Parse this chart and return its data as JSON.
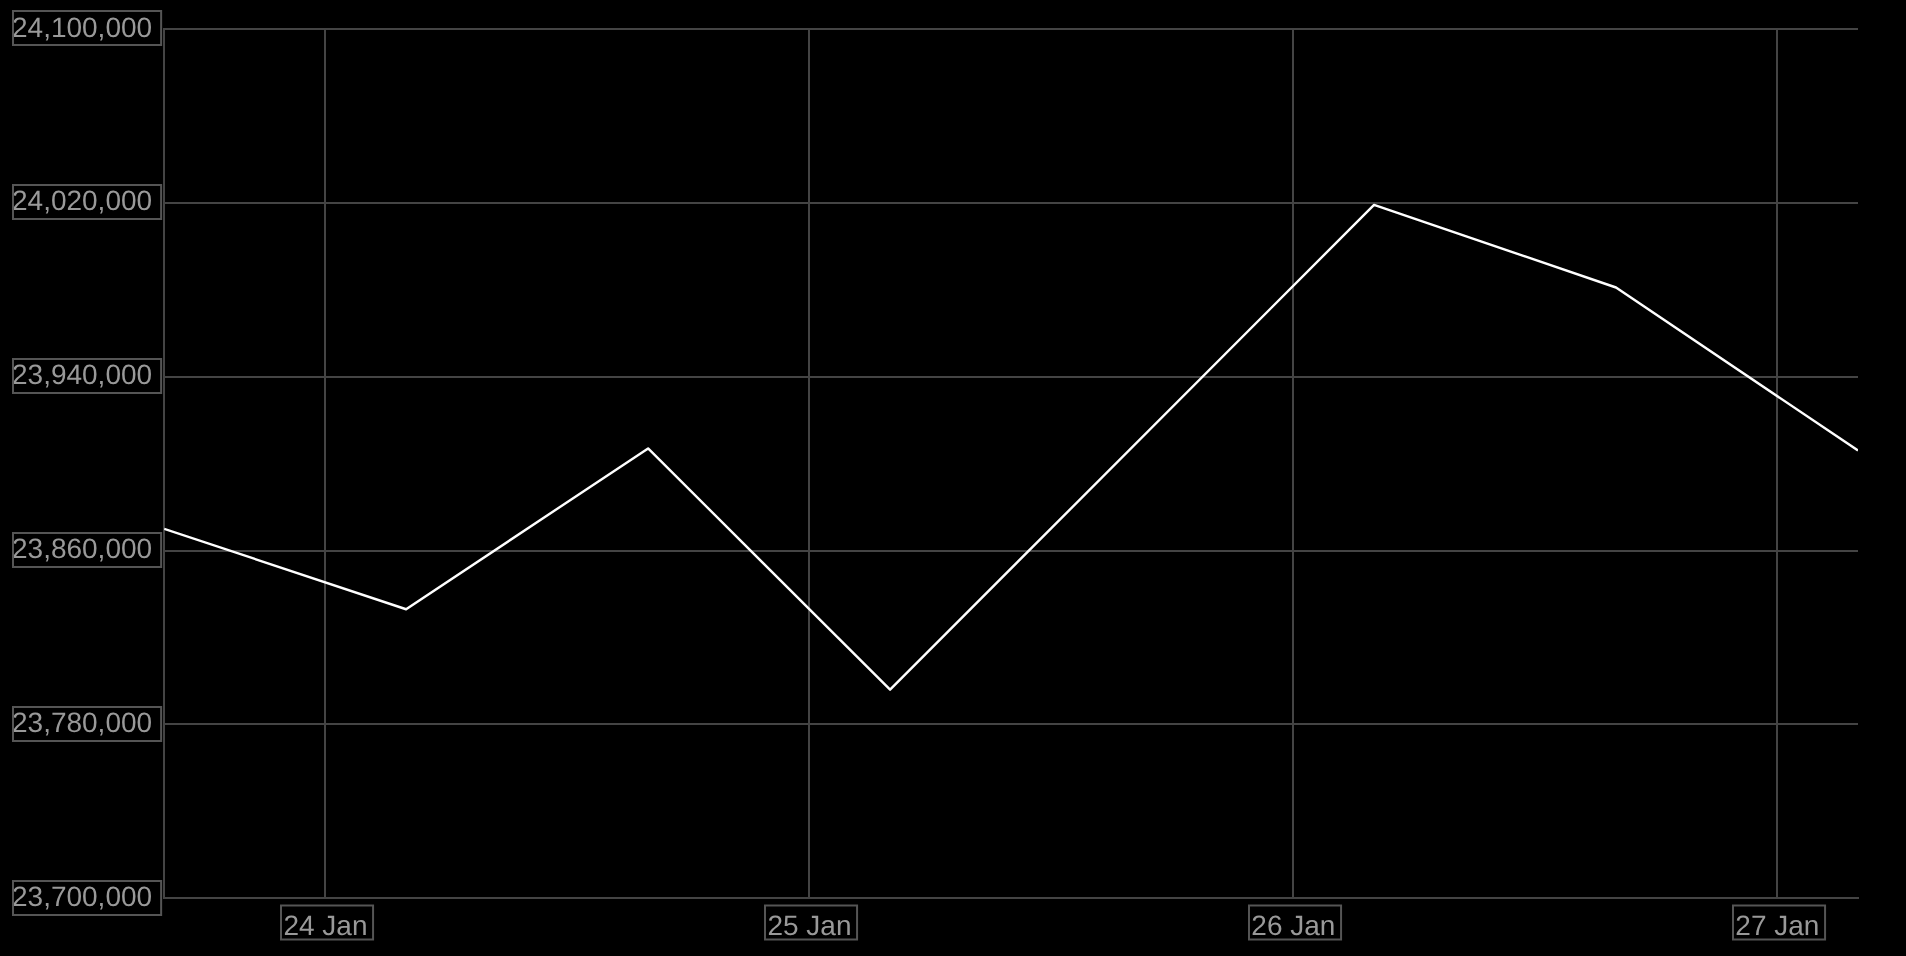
{
  "chart_data": {
    "type": "line",
    "x": [
      "--01-23T16:00",
      "--01-24T04:00",
      "--01-24T16:00",
      "--01-25T04:00",
      "--01-26T04:00",
      "--01-26T16:00",
      "--01-27T04:00"
    ],
    "series": [
      {
        "color": "#ffffff",
        "values": [
          23870000,
          23833000,
          23907000,
          23796000,
          24019000,
          23981000,
          23906000
        ]
      }
    ],
    "xlim": [
      "--01-23T16:00",
      "--01-27T04:00"
    ],
    "xticks": [
      {
        "value": "--01-24",
        "label": "24 Jan"
      },
      {
        "value": "--01-25",
        "label": "25 Jan"
      },
      {
        "value": "--01-26",
        "label": "26 Jan"
      },
      {
        "value": "--01-27",
        "label": "27 Jan"
      }
    ],
    "ylim": [
      23700000,
      24100000
    ],
    "yticks": [
      {
        "value": 23700000,
        "label": "23,700,000"
      },
      {
        "value": 23780000,
        "label": "23,780,000"
      },
      {
        "value": 23860000,
        "label": "23,860,000"
      },
      {
        "value": 23940000,
        "label": "23,940,000"
      },
      {
        "value": 24020000,
        "label": "24,020,000"
      },
      {
        "value": 24100000,
        "label": "24,100,000"
      }
    ],
    "grid": true,
    "legend": false,
    "marker": "none",
    "line_style": "solid"
  }
}
